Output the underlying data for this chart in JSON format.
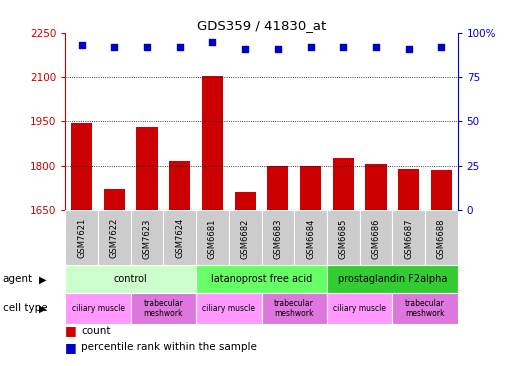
{
  "title": "GDS359 / 41830_at",
  "samples": [
    "GSM7621",
    "GSM7622",
    "GSM7623",
    "GSM7624",
    "GSM6681",
    "GSM6682",
    "GSM6683",
    "GSM6684",
    "GSM6685",
    "GSM6686",
    "GSM6687",
    "GSM6688"
  ],
  "counts": [
    1945,
    1720,
    1930,
    1815,
    2105,
    1710,
    1800,
    1800,
    1825,
    1805,
    1790,
    1785
  ],
  "percentiles": [
    93,
    92,
    92,
    92,
    95,
    91,
    91,
    92,
    92,
    92,
    91,
    92
  ],
  "ylim_left": [
    1650,
    2250
  ],
  "yticks_left": [
    1650,
    1800,
    1950,
    2100,
    2250
  ],
  "ylim_right": [
    0,
    100
  ],
  "yticks_right": [
    0,
    25,
    50,
    75,
    100
  ],
  "bar_color": "#cc0000",
  "dot_color": "#0000cc",
  "grid_color": "#000000",
  "agent_groups": [
    {
      "label": "control",
      "start": 0,
      "end": 4,
      "color": "#ccffcc"
    },
    {
      "label": "latanoprost free acid",
      "start": 4,
      "end": 8,
      "color": "#66ff66"
    },
    {
      "label": "prostaglandin F2alpha",
      "start": 8,
      "end": 12,
      "color": "#33cc33"
    }
  ],
  "cell_type_groups": [
    {
      "label": "ciliary muscle",
      "start": 0,
      "end": 2,
      "color": "#ff99ff"
    },
    {
      "label": "trabecular\nmeshwork",
      "start": 2,
      "end": 4,
      "color": "#dd77dd"
    },
    {
      "label": "ciliary muscle",
      "start": 4,
      "end": 6,
      "color": "#ff99ff"
    },
    {
      "label": "trabecular\nmeshwork",
      "start": 6,
      "end": 8,
      "color": "#dd77dd"
    },
    {
      "label": "ciliary muscle",
      "start": 8,
      "end": 10,
      "color": "#ff99ff"
    },
    {
      "label": "trabecular\nmeshwork",
      "start": 10,
      "end": 12,
      "color": "#dd77dd"
    }
  ],
  "left_label_color": "#cc0000",
  "right_label_color": "#0000cc",
  "bg_color": "#ffffff",
  "sample_box_color": "#cccccc",
  "bar_width": 0.65
}
